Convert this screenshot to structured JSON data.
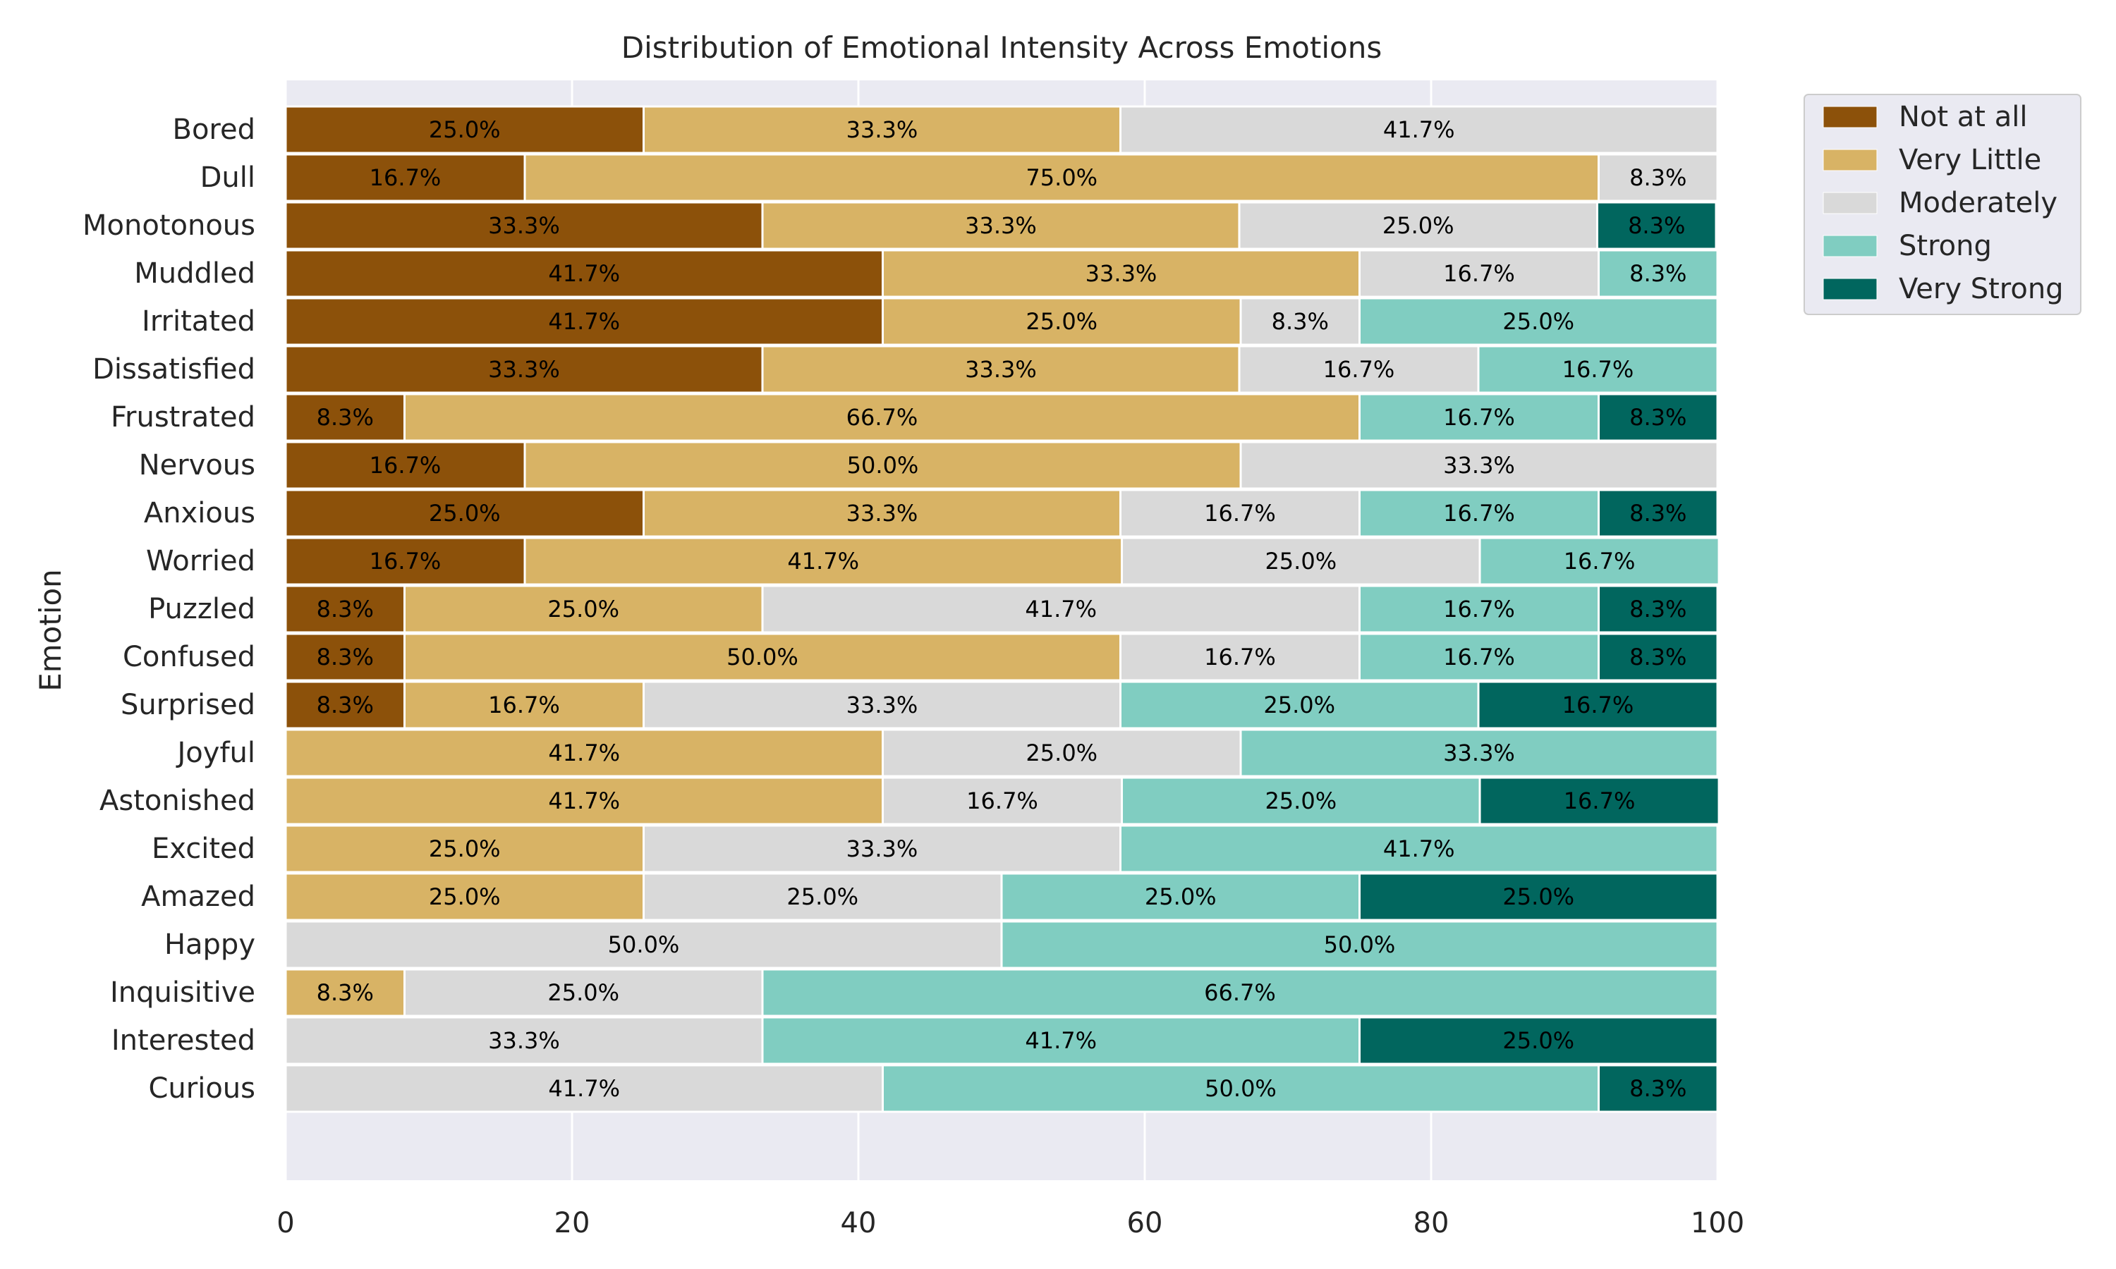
{
  "chart_data": {
    "type": "bar",
    "orientation": "horizontal",
    "stacked": true,
    "title": "Distribution of Emotional Intensity Across Emotions",
    "xlabel": "",
    "ylabel": "Emotion",
    "xlim": [
      0,
      100
    ],
    "xticks": [
      "0",
      "20",
      "40",
      "60",
      "80",
      "100"
    ],
    "grid": true,
    "legend_position": "outside top-right",
    "categories": [
      "Bored",
      "Dull",
      "Monotonous",
      "Muddled",
      "Irritated",
      "Dissatisfied",
      "Frustrated",
      "Nervous",
      "Anxious",
      "Worried",
      "Puzzled",
      "Confused",
      "Surprised",
      "Joyful",
      "Astonished",
      "Excited",
      "Amazed",
      "Happy",
      "Inquisitive",
      "Interested",
      "Curious"
    ],
    "series": [
      {
        "name": "Not at all",
        "color": "#8c510a",
        "values": [
          25.0,
          16.7,
          33.3,
          41.7,
          41.7,
          33.3,
          8.3,
          16.7,
          25.0,
          16.7,
          8.3,
          8.3,
          8.3,
          0,
          0,
          0,
          0,
          0,
          0,
          0,
          0
        ]
      },
      {
        "name": "Very Little",
        "color": "#d8b365",
        "values": [
          33.3,
          75.0,
          33.3,
          33.3,
          25.0,
          33.3,
          66.7,
          50.0,
          33.3,
          41.7,
          25.0,
          50.0,
          16.7,
          41.7,
          41.7,
          25.0,
          25.0,
          0,
          8.3,
          0,
          0
        ]
      },
      {
        "name": "Moderately",
        "color": "#d9d9d9",
        "values": [
          41.7,
          8.3,
          25.0,
          16.7,
          8.3,
          16.7,
          0,
          33.3,
          16.7,
          25.0,
          41.7,
          16.7,
          33.3,
          25.0,
          16.7,
          33.3,
          25.0,
          50.0,
          25.0,
          33.3,
          41.7
        ]
      },
      {
        "name": "Strong",
        "color": "#80cdc1",
        "values": [
          0,
          0,
          0,
          8.3,
          25.0,
          16.7,
          16.7,
          0,
          16.7,
          16.7,
          16.7,
          16.7,
          25.0,
          33.3,
          25.0,
          41.7,
          25.0,
          50.0,
          66.7,
          41.7,
          50.0
        ]
      },
      {
        "name": "Very Strong",
        "color": "#01665e",
        "values": [
          0,
          0,
          8.3,
          0,
          0,
          0,
          8.3,
          0,
          8.3,
          0,
          8.3,
          8.3,
          16.7,
          0,
          16.7,
          0,
          25.0,
          0,
          0,
          25.0,
          8.3
        ]
      }
    ]
  },
  "colors": {
    "plot_background": "#eaeaf2",
    "grid": "#ffffff",
    "text": "#262626"
  }
}
